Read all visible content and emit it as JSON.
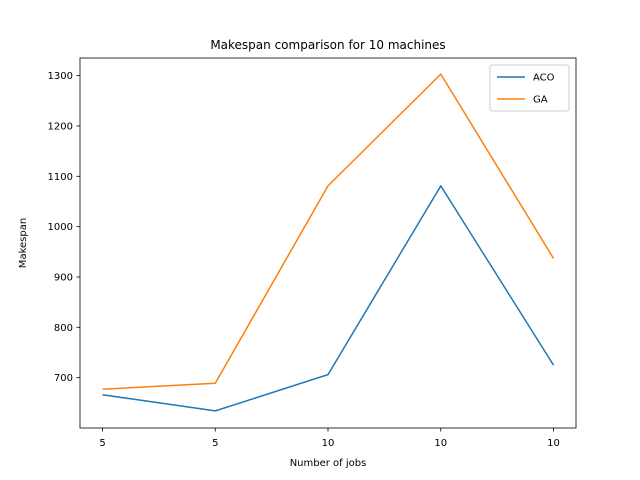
{
  "chart_data": {
    "type": "line",
    "title": "Makespan comparison for 10 machines",
    "xlabel": "Number of jobs",
    "ylabel": "Makespan",
    "categories": [
      "5",
      "5",
      "10",
      "10",
      "10"
    ],
    "ylim": [
      600,
      1335
    ],
    "yticks": [
      700,
      800,
      900,
      1000,
      1100,
      1200,
      1300
    ],
    "grid": false,
    "legend_position": "top-right",
    "series": [
      {
        "name": "ACO",
        "color": "#1f77b4",
        "values": [
          666,
          634,
          706,
          1081,
          725
        ]
      },
      {
        "name": "GA",
        "color": "#ff7f0e",
        "values": [
          677,
          689,
          1081,
          1303,
          937
        ]
      }
    ]
  }
}
